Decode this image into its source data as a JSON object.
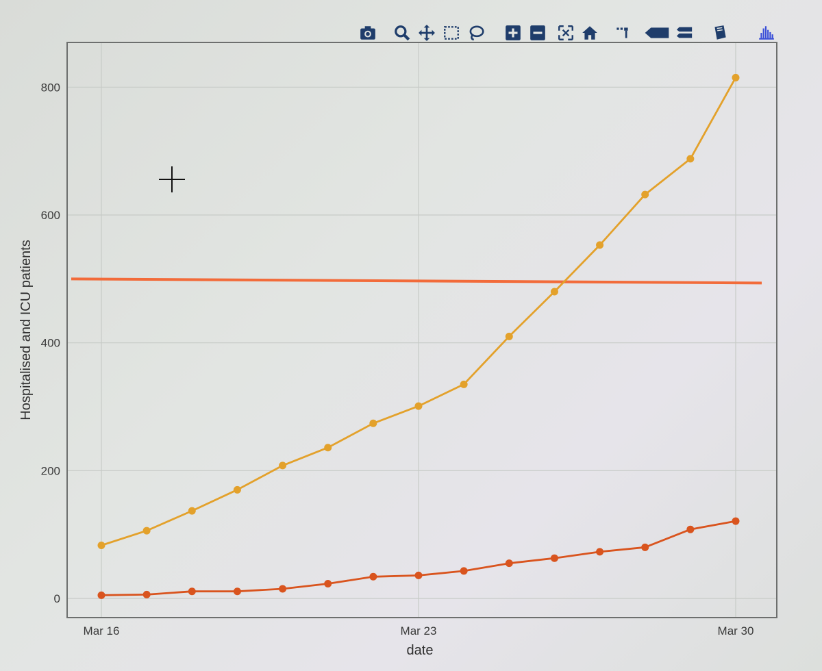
{
  "modebar": {
    "buttons": [
      {
        "name": "camera-icon",
        "label": "Download plot as a png"
      },
      {
        "name": "zoom-icon",
        "label": "Zoom"
      },
      {
        "name": "pan-icon",
        "label": "Pan"
      },
      {
        "name": "box-select-icon",
        "label": "Box Select"
      },
      {
        "name": "lasso-select-icon",
        "label": "Lasso Select"
      },
      {
        "name": "zoom-in-icon",
        "label": "Zoom in"
      },
      {
        "name": "zoom-out-icon",
        "label": "Zoom out"
      },
      {
        "name": "autoscale-icon",
        "label": "Autoscale"
      },
      {
        "name": "reset-axes-icon",
        "label": "Reset axes"
      },
      {
        "name": "spike-lines-icon",
        "label": "Toggle Spike Lines"
      },
      {
        "name": "hover-closest-icon",
        "label": "Show closest data on hover"
      },
      {
        "name": "hover-compare-icon",
        "label": "Compare data on hover"
      },
      {
        "name": "edit-chart-icon",
        "label": "Edit chart"
      },
      {
        "name": "plotly-logo-icon",
        "label": "Produced with Plotly"
      }
    ],
    "icon_color": "#1f3d6b",
    "logo_color": "#3a4ed8"
  },
  "chart_data": {
    "type": "line",
    "title": "",
    "xlabel": "date",
    "ylabel": "Hospitalised and ICU patients",
    "x_ticks": [
      "Mar 16",
      "Mar 23",
      "Mar 30"
    ],
    "y_ticks": [
      "0",
      "200",
      "400",
      "600",
      "800"
    ],
    "ylim": [
      -30,
      870
    ],
    "x": [
      "Mar 16",
      "Mar 17",
      "Mar 18",
      "Mar 19",
      "Mar 20",
      "Mar 21",
      "Mar 22",
      "Mar 23",
      "Mar 24",
      "Mar 25",
      "Mar 26",
      "Mar 27",
      "Mar 28",
      "Mar 29",
      "Mar 30"
    ],
    "grid": true,
    "series": [
      {
        "color": "#e3a12b",
        "marker": true,
        "values": [
          83,
          106,
          137,
          170,
          208,
          236,
          274,
          301,
          335,
          410,
          480,
          553,
          632,
          688,
          815
        ]
      },
      {
        "color": "#d9541e",
        "marker": true,
        "values": [
          5,
          6,
          11,
          11,
          15,
          23,
          34,
          36,
          43,
          55,
          63,
          73,
          80,
          108,
          121
        ]
      }
    ],
    "reference_line": {
      "value": 500,
      "color": "#f26b3a"
    }
  }
}
